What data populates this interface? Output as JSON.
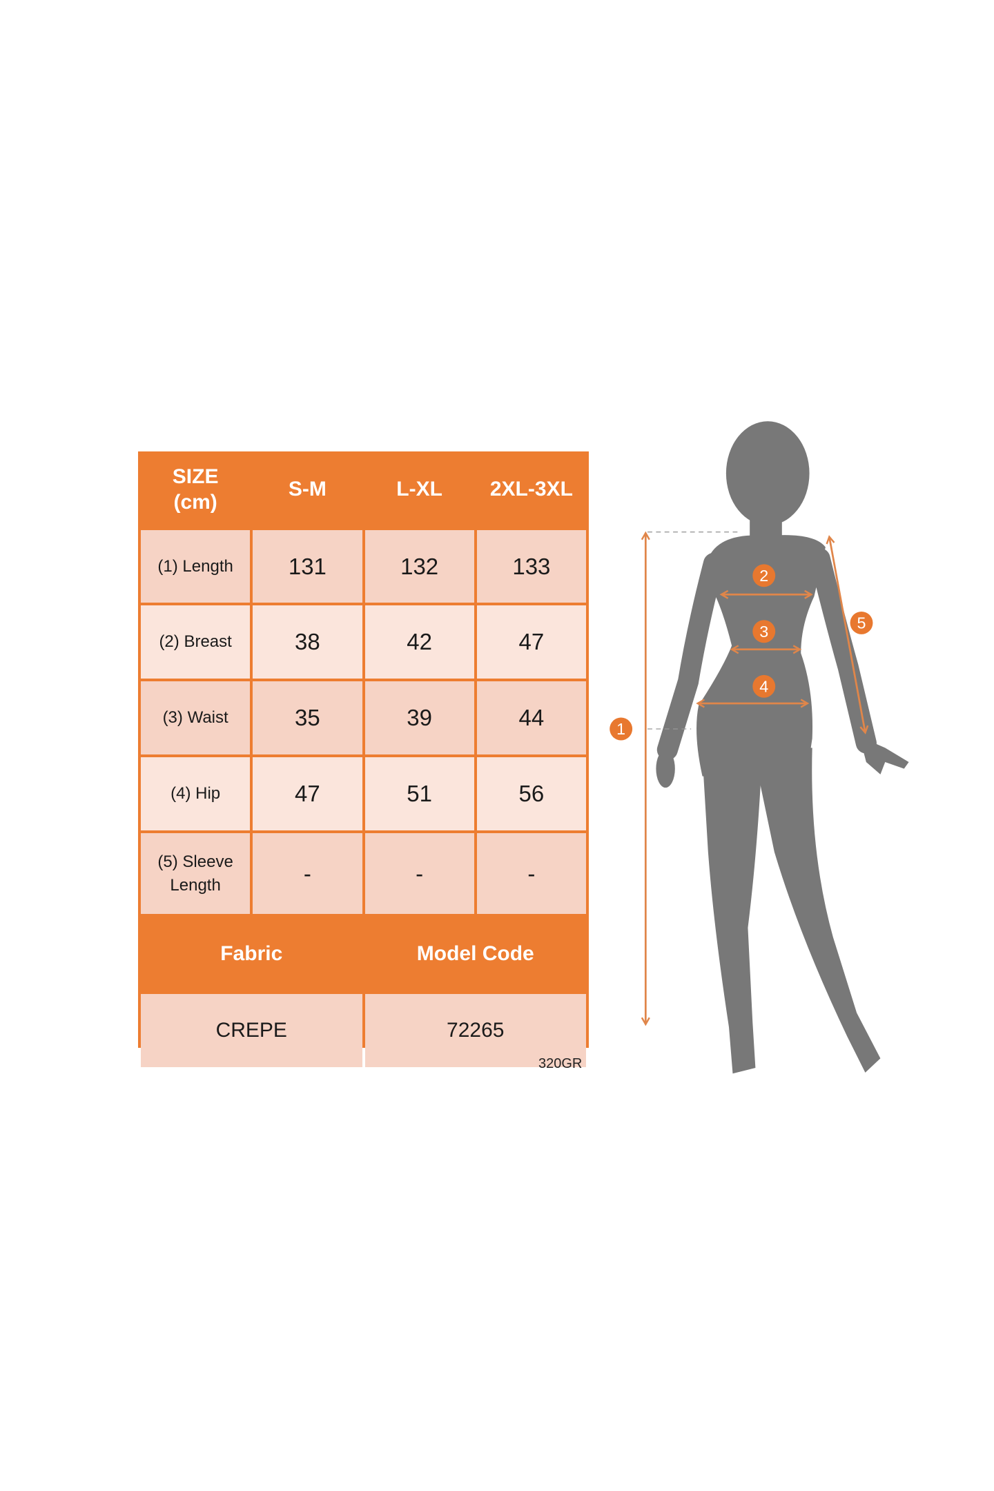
{
  "table": {
    "header": {
      "size_line1": "SIZE",
      "size_line2": "(cm)",
      "sizes": [
        "S-M",
        "L-XL",
        "2XL-3XL"
      ]
    },
    "rows": [
      {
        "label": "(1) Length",
        "values": [
          "131",
          "132",
          "133"
        ]
      },
      {
        "label": "(2) Breast",
        "values": [
          "38",
          "42",
          "47"
        ]
      },
      {
        "label": "(3) Waist",
        "values": [
          "35",
          "39",
          "44"
        ]
      },
      {
        "label": "(4) Hip",
        "values": [
          "47",
          "51",
          "56"
        ]
      },
      {
        "label_line1": "(5) Sleeve",
        "label_line2": "Length",
        "values": [
          "-",
          "-",
          "-"
        ]
      }
    ],
    "footer": {
      "fabric_label": "Fabric",
      "model_code_label": "Model Code",
      "fabric": "CREPE",
      "model_code": "72265"
    }
  },
  "note": "320GR",
  "figure": {
    "markers": [
      "1",
      "2",
      "3",
      "4",
      "5"
    ]
  },
  "colors": {
    "accent": "#ed7d31",
    "row_odd": "#f6d3c5",
    "row_even": "#fbe5dc",
    "silhouette": "#787878"
  }
}
